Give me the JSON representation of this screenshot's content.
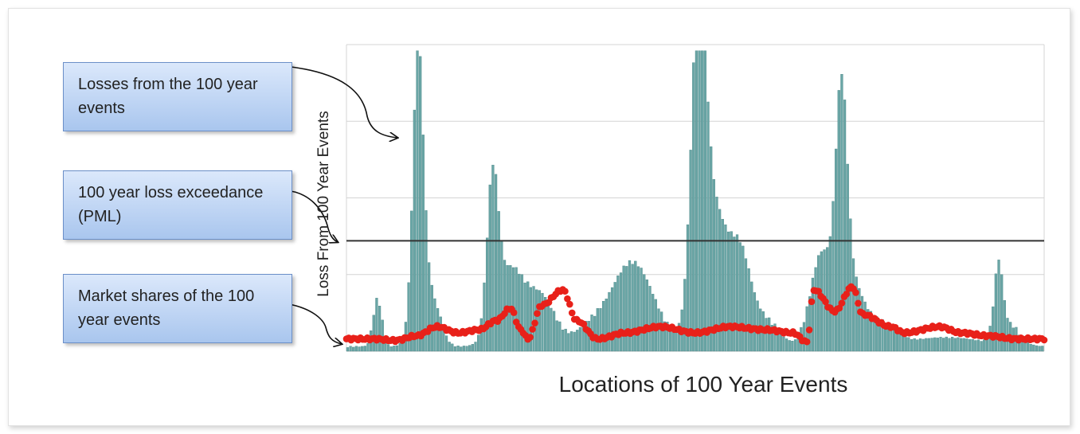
{
  "callouts": {
    "losses": "Losses from the 100 year events",
    "pml": "100 year loss exceedance  (PML)",
    "shares": "Market shares of the 100 year events"
  },
  "chart_data": {
    "type": "bar",
    "xlabel": "Locations of 100 Year Events",
    "ylabel": "Loss From 100 Year Events",
    "ylim": [
      0,
      1
    ],
    "grid": true,
    "colors": {
      "bars": "#6aa6a6",
      "bar_edge": "#4a8686",
      "market_share_points": "#e8211a",
      "pml_line": "#333333",
      "grid": "#d4d4d4"
    },
    "pml_level": 0.36,
    "loss_peaks": [
      {
        "center": 0.045,
        "height": 0.15,
        "width": 0.006
      },
      {
        "center": 0.103,
        "height": 0.76,
        "width": 0.007
      },
      {
        "center": 0.108,
        "height": 0.25,
        "width": 0.012
      },
      {
        "center": 0.13,
        "height": 0.08,
        "width": 0.01
      },
      {
        "center": 0.21,
        "height": 0.48,
        "width": 0.008
      },
      {
        "center": 0.235,
        "height": 0.24,
        "width": 0.02
      },
      {
        "center": 0.28,
        "height": 0.15,
        "width": 0.02
      },
      {
        "center": 0.35,
        "height": 0.05,
        "width": 0.02
      },
      {
        "center": 0.41,
        "height": 0.27,
        "width": 0.03
      },
      {
        "center": 0.505,
        "height": 0.94,
        "width": 0.01
      },
      {
        "center": 0.525,
        "height": 0.45,
        "width": 0.02
      },
      {
        "center": 0.565,
        "height": 0.26,
        "width": 0.015
      },
      {
        "center": 0.6,
        "height": 0.08,
        "width": 0.02
      },
      {
        "center": 0.68,
        "height": 0.27,
        "width": 0.015
      },
      {
        "center": 0.71,
        "height": 0.66,
        "width": 0.008
      },
      {
        "center": 0.72,
        "height": 0.22,
        "width": 0.02
      },
      {
        "center": 0.77,
        "height": 0.06,
        "width": 0.02
      },
      {
        "center": 0.86,
        "height": 0.03,
        "width": 0.05
      },
      {
        "center": 0.935,
        "height": 0.23,
        "width": 0.006
      },
      {
        "center": 0.95,
        "height": 0.06,
        "width": 0.015
      }
    ],
    "market_share_curve": [
      [
        0.0,
        0.04
      ],
      [
        0.04,
        0.04
      ],
      [
        0.07,
        0.035
      ],
      [
        0.1,
        0.05
      ],
      [
        0.13,
        0.08
      ],
      [
        0.16,
        0.06
      ],
      [
        0.19,
        0.07
      ],
      [
        0.215,
        0.1
      ],
      [
        0.235,
        0.14
      ],
      [
        0.25,
        0.07
      ],
      [
        0.26,
        0.04
      ],
      [
        0.28,
        0.15
      ],
      [
        0.31,
        0.2
      ],
      [
        0.33,
        0.1
      ],
      [
        0.36,
        0.04
      ],
      [
        0.4,
        0.06
      ],
      [
        0.45,
        0.08
      ],
      [
        0.5,
        0.06
      ],
      [
        0.55,
        0.08
      ],
      [
        0.6,
        0.07
      ],
      [
        0.64,
        0.06
      ],
      [
        0.66,
        0.03
      ],
      [
        0.67,
        0.2
      ],
      [
        0.7,
        0.13
      ],
      [
        0.725,
        0.21
      ],
      [
        0.74,
        0.12
      ],
      [
        0.78,
        0.08
      ],
      [
        0.8,
        0.06
      ],
      [
        0.85,
        0.08
      ],
      [
        0.88,
        0.06
      ],
      [
        0.92,
        0.05
      ],
      [
        0.96,
        0.04
      ],
      [
        1.0,
        0.04
      ]
    ]
  }
}
